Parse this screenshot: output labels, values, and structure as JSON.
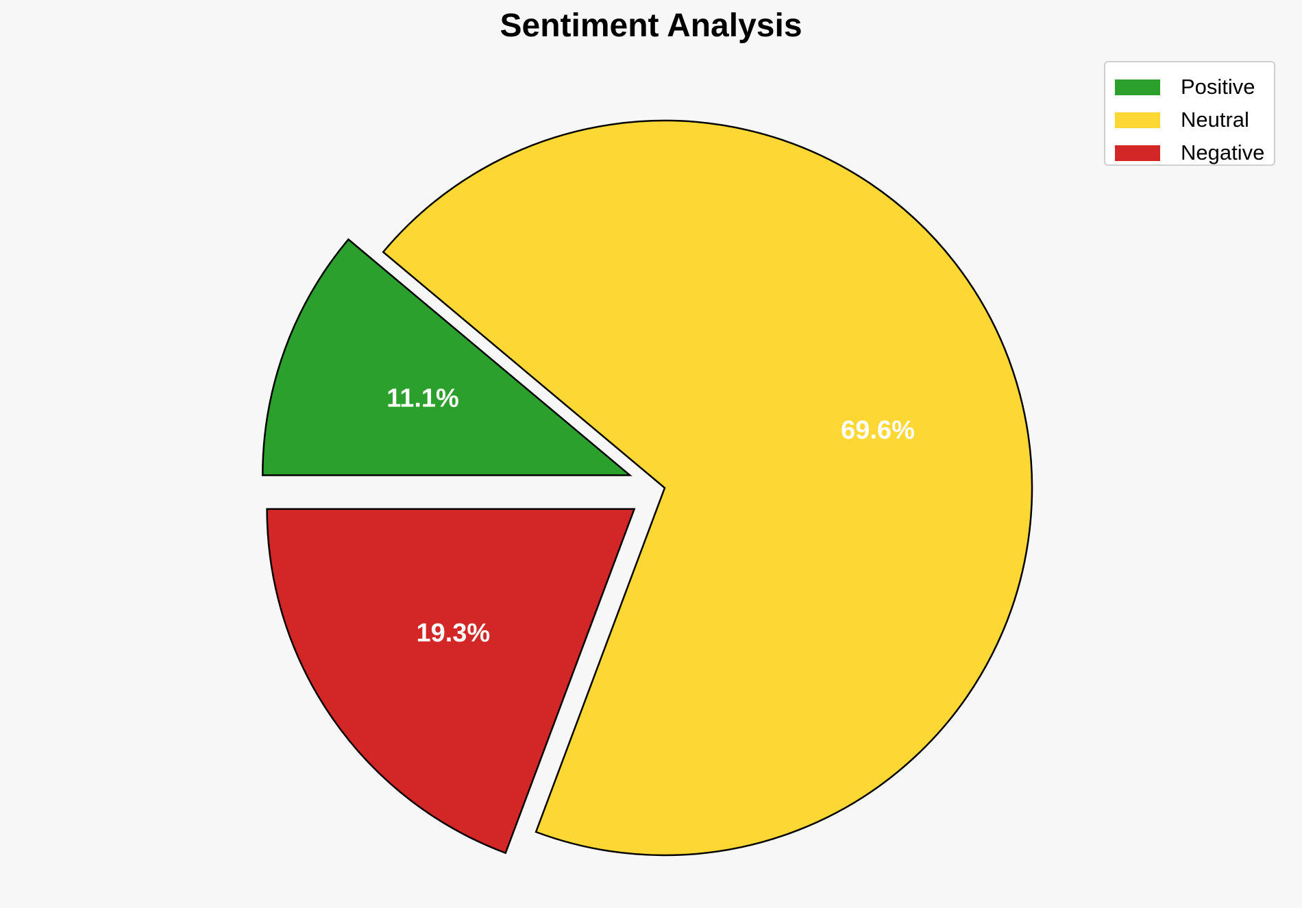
{
  "chart_data": {
    "type": "pie",
    "title": "Sentiment Analysis",
    "categories": [
      "Positive",
      "Neutral",
      "Negative"
    ],
    "values": [
      11.1,
      69.6,
      19.3
    ],
    "labels": [
      "11.1%",
      "69.6%",
      "19.3%"
    ],
    "colors": [
      "#2ca02c",
      "#fdd835",
      "#d32626"
    ],
    "exploded": [
      true,
      false,
      true
    ],
    "legend_position": "top-right"
  }
}
